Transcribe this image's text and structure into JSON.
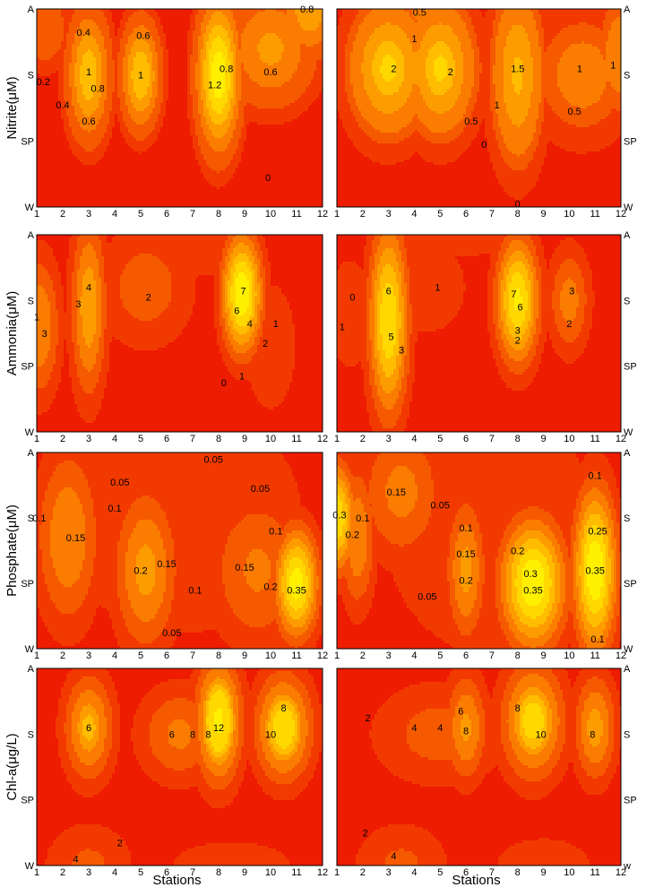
{
  "colors": {
    "levels": [
      "#ee1c00",
      "#f23a00",
      "#f65a00",
      "#fa7c00",
      "#fd9c00",
      "#ffbc00",
      "#ffd800",
      "#fff000"
    ],
    "contour_line": "#000000",
    "background": "#ffffff"
  },
  "chart_data": [
    {
      "type": "heatmap",
      "id": "nitrite-left",
      "row": 0,
      "col": 0,
      "ylabel": "Nitrite(μM)",
      "xlabel": "",
      "x_ticks": [
        "1",
        "2",
        "3",
        "4",
        "5",
        "6",
        "7",
        "8",
        "9",
        "10",
        "11",
        "12"
      ],
      "y_ticks": [
        "A",
        "S",
        "SP",
        "W"
      ],
      "y_tick_side": "left",
      "hotspots": [
        {
          "x": 1.3,
          "y": 0.3,
          "sx": 0.7,
          "sy": 0.45,
          "v": 0.35
        },
        {
          "x": 3.0,
          "y": 1.0,
          "sx": 0.55,
          "sy": 0.65,
          "v": 0.95
        },
        {
          "x": 5.0,
          "y": 1.0,
          "sx": 0.5,
          "sy": 0.55,
          "v": 1.0
        },
        {
          "x": 8.0,
          "y": 1.0,
          "sx": 0.55,
          "sy": 0.75,
          "v": 1.35
        },
        {
          "x": 10.0,
          "y": 0.6,
          "sx": 1.2,
          "sy": 0.6,
          "v": 0.65
        },
        {
          "x": 11.5,
          "y": 0.0,
          "sx": 0.8,
          "sy": 0.5,
          "v": 0.75
        }
      ],
      "levels": [
        0,
        0.1,
        0.2,
        0.4,
        0.6,
        0.8,
        1.0,
        1.2
      ],
      "contour_labels": [
        {
          "text": "0.4",
          "x": 2.8,
          "y": 0.35
        },
        {
          "text": "0.6",
          "x": 5.1,
          "y": 0.4
        },
        {
          "text": "0.8",
          "x": 8.3,
          "y": 0.9
        },
        {
          "text": "0.8",
          "x": 11.4,
          "y": 0.0
        },
        {
          "text": "0.2",
          "x": 1.25,
          "y": 1.1
        },
        {
          "text": "0.4",
          "x": 2.0,
          "y": 1.45
        },
        {
          "text": "1",
          "x": 3.0,
          "y": 0.95
        },
        {
          "text": "0.8",
          "x": 3.35,
          "y": 1.2
        },
        {
          "text": "0.6",
          "x": 3.0,
          "y": 1.7
        },
        {
          "text": "1",
          "x": 5.0,
          "y": 1.0
        },
        {
          "text": "1.2",
          "x": 7.85,
          "y": 1.15
        },
        {
          "text": "0.6",
          "x": 10.0,
          "y": 0.95
        },
        {
          "text": "0",
          "x": 9.9,
          "y": 2.55
        }
      ]
    },
    {
      "type": "heatmap",
      "id": "nitrite-right",
      "row": 0,
      "col": 1,
      "ylabel": "",
      "xlabel": "",
      "x_ticks": [
        "1",
        "2",
        "3",
        "4",
        "5",
        "6",
        "7",
        "8",
        "9",
        "10",
        "11",
        "12"
      ],
      "y_ticks": [
        "A",
        "S",
        "SP",
        "W"
      ],
      "y_tick_side": "right",
      "hotspots": [
        {
          "x": 3.0,
          "y": 0.9,
          "sx": 0.9,
          "sy": 0.6,
          "v": 1.9
        },
        {
          "x": 5.0,
          "y": 0.9,
          "sx": 0.8,
          "sy": 0.6,
          "v": 1.9
        },
        {
          "x": 4.0,
          "y": 0.9,
          "sx": 1.6,
          "sy": 0.55,
          "v": 1.1
        },
        {
          "x": 8.0,
          "y": 1.0,
          "sx": 0.6,
          "sy": 0.8,
          "v": 1.6
        },
        {
          "x": 4.5,
          "y": 0.0,
          "sx": 1.0,
          "sy": 0.4,
          "v": 0.6
        },
        {
          "x": 10.5,
          "y": 1.0,
          "sx": 1.2,
          "sy": 0.6,
          "v": 0.7
        },
        {
          "x": 12.0,
          "y": 0.7,
          "sx": 0.6,
          "sy": 0.6,
          "v": 0.8
        }
      ],
      "levels": [
        0,
        0.1,
        0.3,
        0.5,
        1.0,
        1.5,
        1.8,
        2.0
      ],
      "contour_labels": [
        {
          "text": "0.5",
          "x": 4.2,
          "y": 0.05
        },
        {
          "text": "1",
          "x": 4.0,
          "y": 0.45
        },
        {
          "text": "2",
          "x": 3.2,
          "y": 0.9
        },
        {
          "text": "2",
          "x": 5.4,
          "y": 0.95
        },
        {
          "text": "1.5",
          "x": 8.0,
          "y": 0.9
        },
        {
          "text": "1",
          "x": 10.4,
          "y": 0.9
        },
        {
          "text": "1",
          "x": 11.7,
          "y": 0.85
        },
        {
          "text": "1",
          "x": 7.2,
          "y": 1.45
        },
        {
          "text": "0.5",
          "x": 10.2,
          "y": 1.55
        },
        {
          "text": "0.5",
          "x": 6.2,
          "y": 1.7
        },
        {
          "text": "0",
          "x": 6.7,
          "y": 2.05
        },
        {
          "text": "0",
          "x": 8.0,
          "y": 2.95
        }
      ]
    },
    {
      "type": "heatmap",
      "id": "ammonia-left",
      "row": 1,
      "col": 0,
      "ylabel": "Ammonia(μM)",
      "xlabel": "",
      "x_ticks": [
        "1",
        "2",
        "3",
        "4",
        "5",
        "6",
        "7",
        "8",
        "9",
        "10",
        "11",
        "12"
      ],
      "y_ticks": [
        "A",
        "S",
        "SP",
        "W"
      ],
      "y_tick_side": "left",
      "hotspots": [
        {
          "x": 1.1,
          "y": 1.4,
          "sx": 0.6,
          "sy": 0.8,
          "v": 4.0
        },
        {
          "x": 3.0,
          "y": 1.1,
          "sx": 0.5,
          "sy": 1.0,
          "v": 4.8
        },
        {
          "x": 5.2,
          "y": 0.8,
          "sx": 1.4,
          "sy": 0.7,
          "v": 2.6
        },
        {
          "x": 8.9,
          "y": 0.9,
          "sx": 0.55,
          "sy": 0.65,
          "v": 8.0
        },
        {
          "x": 10.0,
          "y": 1.7,
          "sx": 0.8,
          "sy": 0.8,
          "v": 2.0
        },
        {
          "x": 6.5,
          "y": 0.2,
          "sx": 3.0,
          "sy": 0.5,
          "v": 1.5
        }
      ],
      "levels": [
        0,
        1,
        2,
        3,
        4,
        5,
        6,
        7
      ],
      "contour_labels": [
        {
          "text": "1",
          "x": 1.0,
          "y": 1.25
        },
        {
          "text": "3",
          "x": 1.3,
          "y": 1.5
        },
        {
          "text": "3",
          "x": 2.6,
          "y": 1.05
        },
        {
          "text": "4",
          "x": 3.0,
          "y": 0.8
        },
        {
          "text": "2",
          "x": 5.3,
          "y": 0.95
        },
        {
          "text": "7",
          "x": 8.95,
          "y": 0.85
        },
        {
          "text": "6",
          "x": 8.7,
          "y": 1.15
        },
        {
          "text": "4",
          "x": 9.2,
          "y": 1.35
        },
        {
          "text": "1",
          "x": 10.2,
          "y": 1.35
        },
        {
          "text": "2",
          "x": 9.8,
          "y": 1.65
        },
        {
          "text": "0",
          "x": 8.2,
          "y": 2.25
        },
        {
          "text": "1",
          "x": 8.9,
          "y": 2.15
        }
      ]
    },
    {
      "type": "heatmap",
      "id": "ammonia-right",
      "row": 1,
      "col": 1,
      "ylabel": "",
      "xlabel": "",
      "x_ticks": [
        "1",
        "2",
        "3",
        "4",
        "5",
        "6",
        "7",
        "8",
        "9",
        "10",
        "11",
        "12"
      ],
      "y_ticks": [
        "A",
        "S",
        "SP",
        "W"
      ],
      "y_tick_side": "right",
      "hotspots": [
        {
          "x": 3.0,
          "y": 1.3,
          "sx": 0.55,
          "sy": 1.05,
          "v": 7.0
        },
        {
          "x": 8.0,
          "y": 1.0,
          "sx": 0.6,
          "sy": 0.7,
          "v": 7.2
        },
        {
          "x": 10.0,
          "y": 1.0,
          "sx": 0.6,
          "sy": 0.6,
          "v": 3.5
        },
        {
          "x": 1.5,
          "y": 1.2,
          "sx": 0.9,
          "sy": 0.9,
          "v": 1.5
        },
        {
          "x": 4.5,
          "y": 0.8,
          "sx": 1.5,
          "sy": 0.7,
          "v": 1.6
        },
        {
          "x": 7.0,
          "y": 2.2,
          "sx": 3.0,
          "sy": 0.6,
          "v": 1.0
        },
        {
          "x": 6.0,
          "y": 0.1,
          "sx": 4.0,
          "sy": 0.35,
          "v": 1.2
        }
      ],
      "levels": [
        0,
        1,
        2,
        3,
        4,
        5,
        6,
        7
      ],
      "contour_labels": [
        {
          "text": "0",
          "x": 1.6,
          "y": 0.95
        },
        {
          "text": "1",
          "x": 1.2,
          "y": 1.4
        },
        {
          "text": "6",
          "x": 3.0,
          "y": 0.85
        },
        {
          "text": "5",
          "x": 3.1,
          "y": 1.55
        },
        {
          "text": "3",
          "x": 3.5,
          "y": 1.75
        },
        {
          "text": "1",
          "x": 4.9,
          "y": 0.8
        },
        {
          "text": "7",
          "x": 7.85,
          "y": 0.9
        },
        {
          "text": "6",
          "x": 8.1,
          "y": 1.1
        },
        {
          "text": "3",
          "x": 8.0,
          "y": 1.45
        },
        {
          "text": "2",
          "x": 8.0,
          "y": 1.6
        },
        {
          "text": "3",
          "x": 10.1,
          "y": 0.85
        },
        {
          "text": "2",
          "x": 10.0,
          "y": 1.35
        }
      ]
    },
    {
      "type": "heatmap",
      "id": "phosphate-left",
      "row": 2,
      "col": 0,
      "ylabel": "Phosphate(μM)",
      "xlabel": "",
      "x_ticks": [
        "1",
        "2",
        "3",
        "4",
        "5",
        "6",
        "7",
        "8",
        "9",
        "10",
        "11",
        "12"
      ],
      "y_ticks": [
        "A",
        "S",
        "SP",
        "W"
      ],
      "y_tick_side": "left",
      "hotspots": [
        {
          "x": 2.2,
          "y": 1.3,
          "sx": 0.9,
          "sy": 1.0,
          "v": 0.2
        },
        {
          "x": 5.2,
          "y": 1.8,
          "sx": 0.9,
          "sy": 0.9,
          "v": 0.22
        },
        {
          "x": 11.0,
          "y": 2.0,
          "sx": 0.6,
          "sy": 0.6,
          "v": 0.38
        },
        {
          "x": 9.5,
          "y": 1.8,
          "sx": 1.4,
          "sy": 0.9,
          "v": 0.16
        },
        {
          "x": 6.5,
          "y": 1.0,
          "sx": 4.0,
          "sy": 1.5,
          "v": 0.1
        }
      ],
      "levels": [
        0,
        0.05,
        0.1,
        0.15,
        0.2,
        0.25,
        0.3,
        0.35
      ],
      "contour_labels": [
        {
          "text": "0.05",
          "x": 4.2,
          "y": 0.45
        },
        {
          "text": "0.05",
          "x": 7.8,
          "y": 0.1
        },
        {
          "text": "0.05",
          "x": 9.6,
          "y": 0.55
        },
        {
          "text": "0.1",
          "x": 4.0,
          "y": 0.85
        },
        {
          "text": "0.1",
          "x": 10.2,
          "y": 1.2
        },
        {
          "text": "0.15",
          "x": 2.5,
          "y": 1.3
        },
        {
          "text": "0.15",
          "x": 6.0,
          "y": 1.7
        },
        {
          "text": "0.2",
          "x": 5.0,
          "y": 1.8
        },
        {
          "text": "0.15",
          "x": 9.0,
          "y": 1.75
        },
        {
          "text": "0.2",
          "x": 10.0,
          "y": 2.05
        },
        {
          "text": "0.35",
          "x": 11.0,
          "y": 2.1
        },
        {
          "text": "0.1",
          "x": 7.1,
          "y": 2.1
        },
        {
          "text": "0.05",
          "x": 6.2,
          "y": 2.75
        },
        {
          "text": "0.1",
          "x": 1.1,
          "y": 1.0
        }
      ]
    },
    {
      "type": "heatmap",
      "id": "phosphate-right",
      "row": 2,
      "col": 1,
      "ylabel": "",
      "xlabel": "",
      "x_ticks": [
        "1",
        "2",
        "3",
        "4",
        "5",
        "6",
        "7",
        "8",
        "9",
        "10",
        "11",
        "12"
      ],
      "y_ticks": [
        "A",
        "S",
        "SP",
        "W"
      ],
      "y_tick_side": "right",
      "hotspots": [
        {
          "x": 1.0,
          "y": 1.0,
          "sx": 0.5,
          "sy": 0.6,
          "v": 0.35
        },
        {
          "x": 1.8,
          "y": 1.3,
          "sx": 0.5,
          "sy": 0.8,
          "v": 0.2
        },
        {
          "x": 3.5,
          "y": 0.6,
          "sx": 1.2,
          "sy": 0.8,
          "v": 0.17
        },
        {
          "x": 6.0,
          "y": 1.8,
          "sx": 0.55,
          "sy": 0.8,
          "v": 0.22
        },
        {
          "x": 8.6,
          "y": 2.0,
          "sx": 0.9,
          "sy": 0.7,
          "v": 0.4
        },
        {
          "x": 11.0,
          "y": 1.8,
          "sx": 0.6,
          "sy": 0.9,
          "v": 0.4
        },
        {
          "x": 7.0,
          "y": 1.2,
          "sx": 3.5,
          "sy": 1.6,
          "v": 0.1
        }
      ],
      "levels": [
        0,
        0.05,
        0.1,
        0.15,
        0.2,
        0.25,
        0.3,
        0.35
      ],
      "contour_labels": [
        {
          "text": "0.15",
          "x": 3.3,
          "y": 0.6
        },
        {
          "text": "0.05",
          "x": 5.0,
          "y": 0.8
        },
        {
          "text": "0.1",
          "x": 6.0,
          "y": 1.15
        },
        {
          "text": "0.15",
          "x": 6.0,
          "y": 1.55
        },
        {
          "text": "0.2",
          "x": 6.0,
          "y": 1.95
        },
        {
          "text": "0.05",
          "x": 4.5,
          "y": 2.2
        },
        {
          "text": "0.3",
          "x": 1.1,
          "y": 0.95
        },
        {
          "text": "0.2",
          "x": 1.6,
          "y": 1.25
        },
        {
          "text": "0.1",
          "x": 2.0,
          "y": 1.0
        },
        {
          "text": "0.2",
          "x": 8.0,
          "y": 1.5
        },
        {
          "text": "0.3",
          "x": 8.5,
          "y": 1.85
        },
        {
          "text": "0.35",
          "x": 8.6,
          "y": 2.1
        },
        {
          "text": "0.1",
          "x": 11.0,
          "y": 0.35
        },
        {
          "text": "0.25",
          "x": 11.1,
          "y": 1.2
        },
        {
          "text": "0.35",
          "x": 11.0,
          "y": 1.8
        },
        {
          "text": "0.1",
          "x": 11.1,
          "y": 2.85
        }
      ]
    },
    {
      "type": "heatmap",
      "id": "chla-left",
      "row": 3,
      "col": 0,
      "ylabel": "Chl-a(μg/L)",
      "xlabel": "Stations",
      "x_ticks": [
        "1",
        "2",
        "3",
        "4",
        "5",
        "6",
        "7",
        "8",
        "9",
        "10",
        "11",
        "12"
      ],
      "y_ticks": [
        "A",
        "S",
        "SP",
        "W"
      ],
      "y_tick_side": "left",
      "hotspots": [
        {
          "x": 3.0,
          "y": 0.9,
          "sx": 0.7,
          "sy": 0.6,
          "v": 9.5
        },
        {
          "x": 8.0,
          "y": 0.8,
          "sx": 0.65,
          "sy": 0.7,
          "v": 12.5
        },
        {
          "x": 10.5,
          "y": 0.9,
          "sx": 0.8,
          "sy": 0.6,
          "v": 11.5
        },
        {
          "x": 6.5,
          "y": 1.0,
          "sx": 1.2,
          "sy": 0.55,
          "v": 6.5
        },
        {
          "x": 3.0,
          "y": 3.0,
          "sx": 1.3,
          "sy": 0.5,
          "v": 4.5
        },
        {
          "x": 8.5,
          "y": 3.0,
          "sx": 2.5,
          "sy": 0.4,
          "v": 3.0
        }
      ],
      "levels": [
        0,
        2,
        4,
        6,
        8,
        9,
        10,
        12
      ],
      "contour_labels": [
        {
          "text": "6",
          "x": 3.0,
          "y": 0.9
        },
        {
          "text": "6",
          "x": 6.2,
          "y": 1.0
        },
        {
          "text": "8",
          "x": 7.0,
          "y": 1.0
        },
        {
          "text": "8",
          "x": 7.6,
          "y": 1.0
        },
        {
          "text": "12",
          "x": 8.0,
          "y": 0.9
        },
        {
          "text": "10",
          "x": 10.0,
          "y": 1.0
        },
        {
          "text": "8",
          "x": 10.5,
          "y": 0.6
        },
        {
          "text": "2",
          "x": 4.2,
          "y": 2.65
        },
        {
          "text": "4",
          "x": 2.5,
          "y": 2.9
        }
      ]
    },
    {
      "type": "heatmap",
      "id": "chla-right",
      "row": 3,
      "col": 1,
      "ylabel": "",
      "xlabel": "Stations",
      "x_ticks": [
        "1",
        "2",
        "3",
        "4",
        "5",
        "6",
        "7",
        "8",
        "9",
        "10",
        "11",
        "12"
      ],
      "y_ticks": [
        "A",
        "S",
        "SP",
        "w"
      ],
      "y_tick_side": "right",
      "hotspots": [
        {
          "x": 6.0,
          "y": 0.9,
          "sx": 0.6,
          "sy": 0.6,
          "v": 8.5
        },
        {
          "x": 8.6,
          "y": 0.8,
          "sx": 0.9,
          "sy": 0.65,
          "v": 11.0
        },
        {
          "x": 11.0,
          "y": 0.9,
          "sx": 0.6,
          "sy": 0.6,
          "v": 9.0
        },
        {
          "x": 5.0,
          "y": 1.0,
          "sx": 2.0,
          "sy": 0.6,
          "v": 5.0
        },
        {
          "x": 3.5,
          "y": 3.0,
          "sx": 1.4,
          "sy": 0.5,
          "v": 4.5
        },
        {
          "x": 9.0,
          "y": 3.0,
          "sx": 2.0,
          "sy": 0.45,
          "v": 3.0
        }
      ],
      "levels": [
        0,
        2,
        4,
        6,
        8,
        9,
        10,
        12
      ],
      "contour_labels": [
        {
          "text": "2",
          "x": 2.2,
          "y": 0.75
        },
        {
          "text": "4",
          "x": 4.0,
          "y": 0.9
        },
        {
          "text": "4",
          "x": 5.0,
          "y": 0.9
        },
        {
          "text": "6",
          "x": 5.8,
          "y": 0.65
        },
        {
          "text": "8",
          "x": 6.0,
          "y": 0.95
        },
        {
          "text": "8",
          "x": 8.0,
          "y": 0.6
        },
        {
          "text": "10",
          "x": 8.9,
          "y": 1.0
        },
        {
          "text": "8",
          "x": 10.9,
          "y": 1.0
        },
        {
          "text": "2",
          "x": 2.1,
          "y": 2.5
        },
        {
          "text": "4",
          "x": 3.2,
          "y": 2.85
        }
      ]
    }
  ]
}
